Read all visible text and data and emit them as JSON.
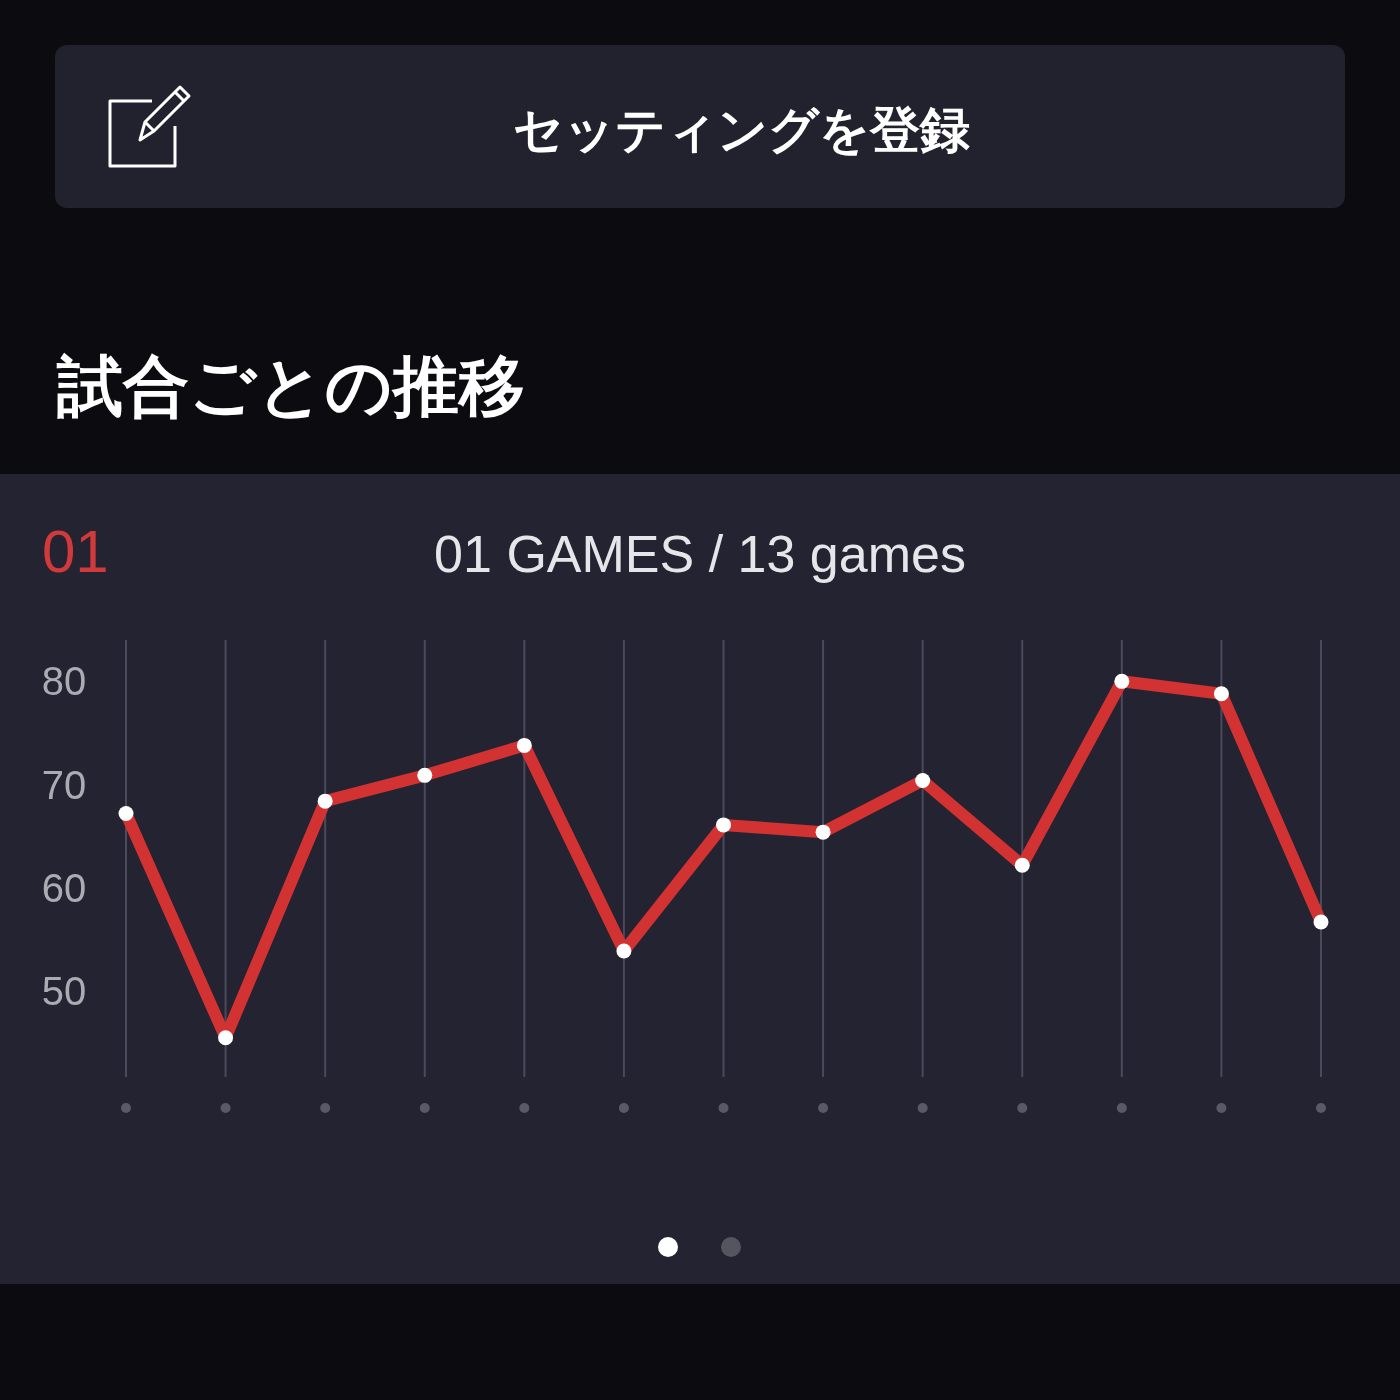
{
  "chart_data": {
    "type": "line",
    "title": "試合ごとの推移",
    "subtitle": "01 GAMES / 13 games",
    "annotations": [
      "セッティングを登録",
      "01"
    ],
    "categories": [
      null,
      null,
      null,
      null,
      null,
      null,
      null,
      null,
      null,
      null,
      null,
      null,
      null
    ],
    "series": [
      {
        "color": "#d33232",
        "values": [
          67.2,
          45.5,
          68.4,
          70.9,
          73.8,
          53.9,
          66.1,
          65.4,
          70.4,
          62.2,
          80.0,
          78.8,
          56.7
        ]
      }
    ],
    "ylim": [
      41.7,
      84
    ],
    "yticks": [
      50,
      60,
      70,
      80
    ],
    "grid": "x",
    "marker": "circle",
    "line_style": "solid",
    "tick_labels": "y"
  }
}
